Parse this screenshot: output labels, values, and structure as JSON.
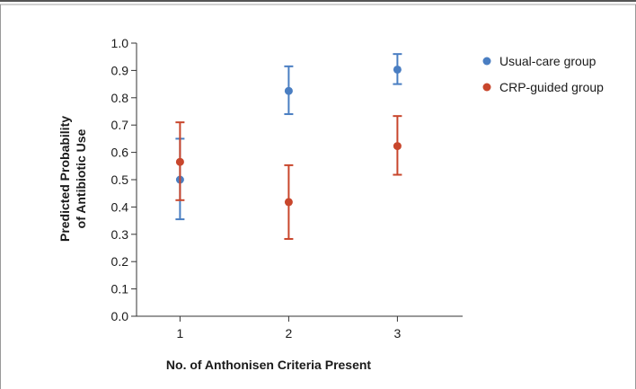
{
  "chart_data": {
    "type": "scatter",
    "xlabel": "No. of Anthonisen Criteria Present",
    "ylabel": [
      "Predicted Probability",
      "of Antibiotic Use"
    ],
    "x": [
      1,
      2,
      3
    ],
    "xlim": [
      0.6,
      3.6
    ],
    "ylim": [
      0,
      1
    ],
    "yticks": [
      "0.0",
      "0.1",
      "0.2",
      "0.3",
      "0.4",
      "0.5",
      "0.6",
      "0.7",
      "0.8",
      "0.9",
      "1.0"
    ],
    "xticks": [
      "1",
      "2",
      "3"
    ],
    "grid": false,
    "legend_position": "top-right",
    "series": [
      {
        "name": "Usual-care group",
        "color": "#4a7ec2",
        "values": [
          0.5,
          0.825,
          0.903
        ],
        "lower": [
          0.355,
          0.74,
          0.85
        ],
        "upper": [
          0.65,
          0.915,
          0.96
        ],
        "x_offset": 0
      },
      {
        "name": "CRP-guided group",
        "color": "#c8462c",
        "values": [
          0.565,
          0.418,
          0.623
        ],
        "lower": [
          0.425,
          0.283,
          0.518
        ],
        "upper": [
          0.71,
          0.553,
          0.733
        ],
        "x_offset": 0
      }
    ]
  }
}
